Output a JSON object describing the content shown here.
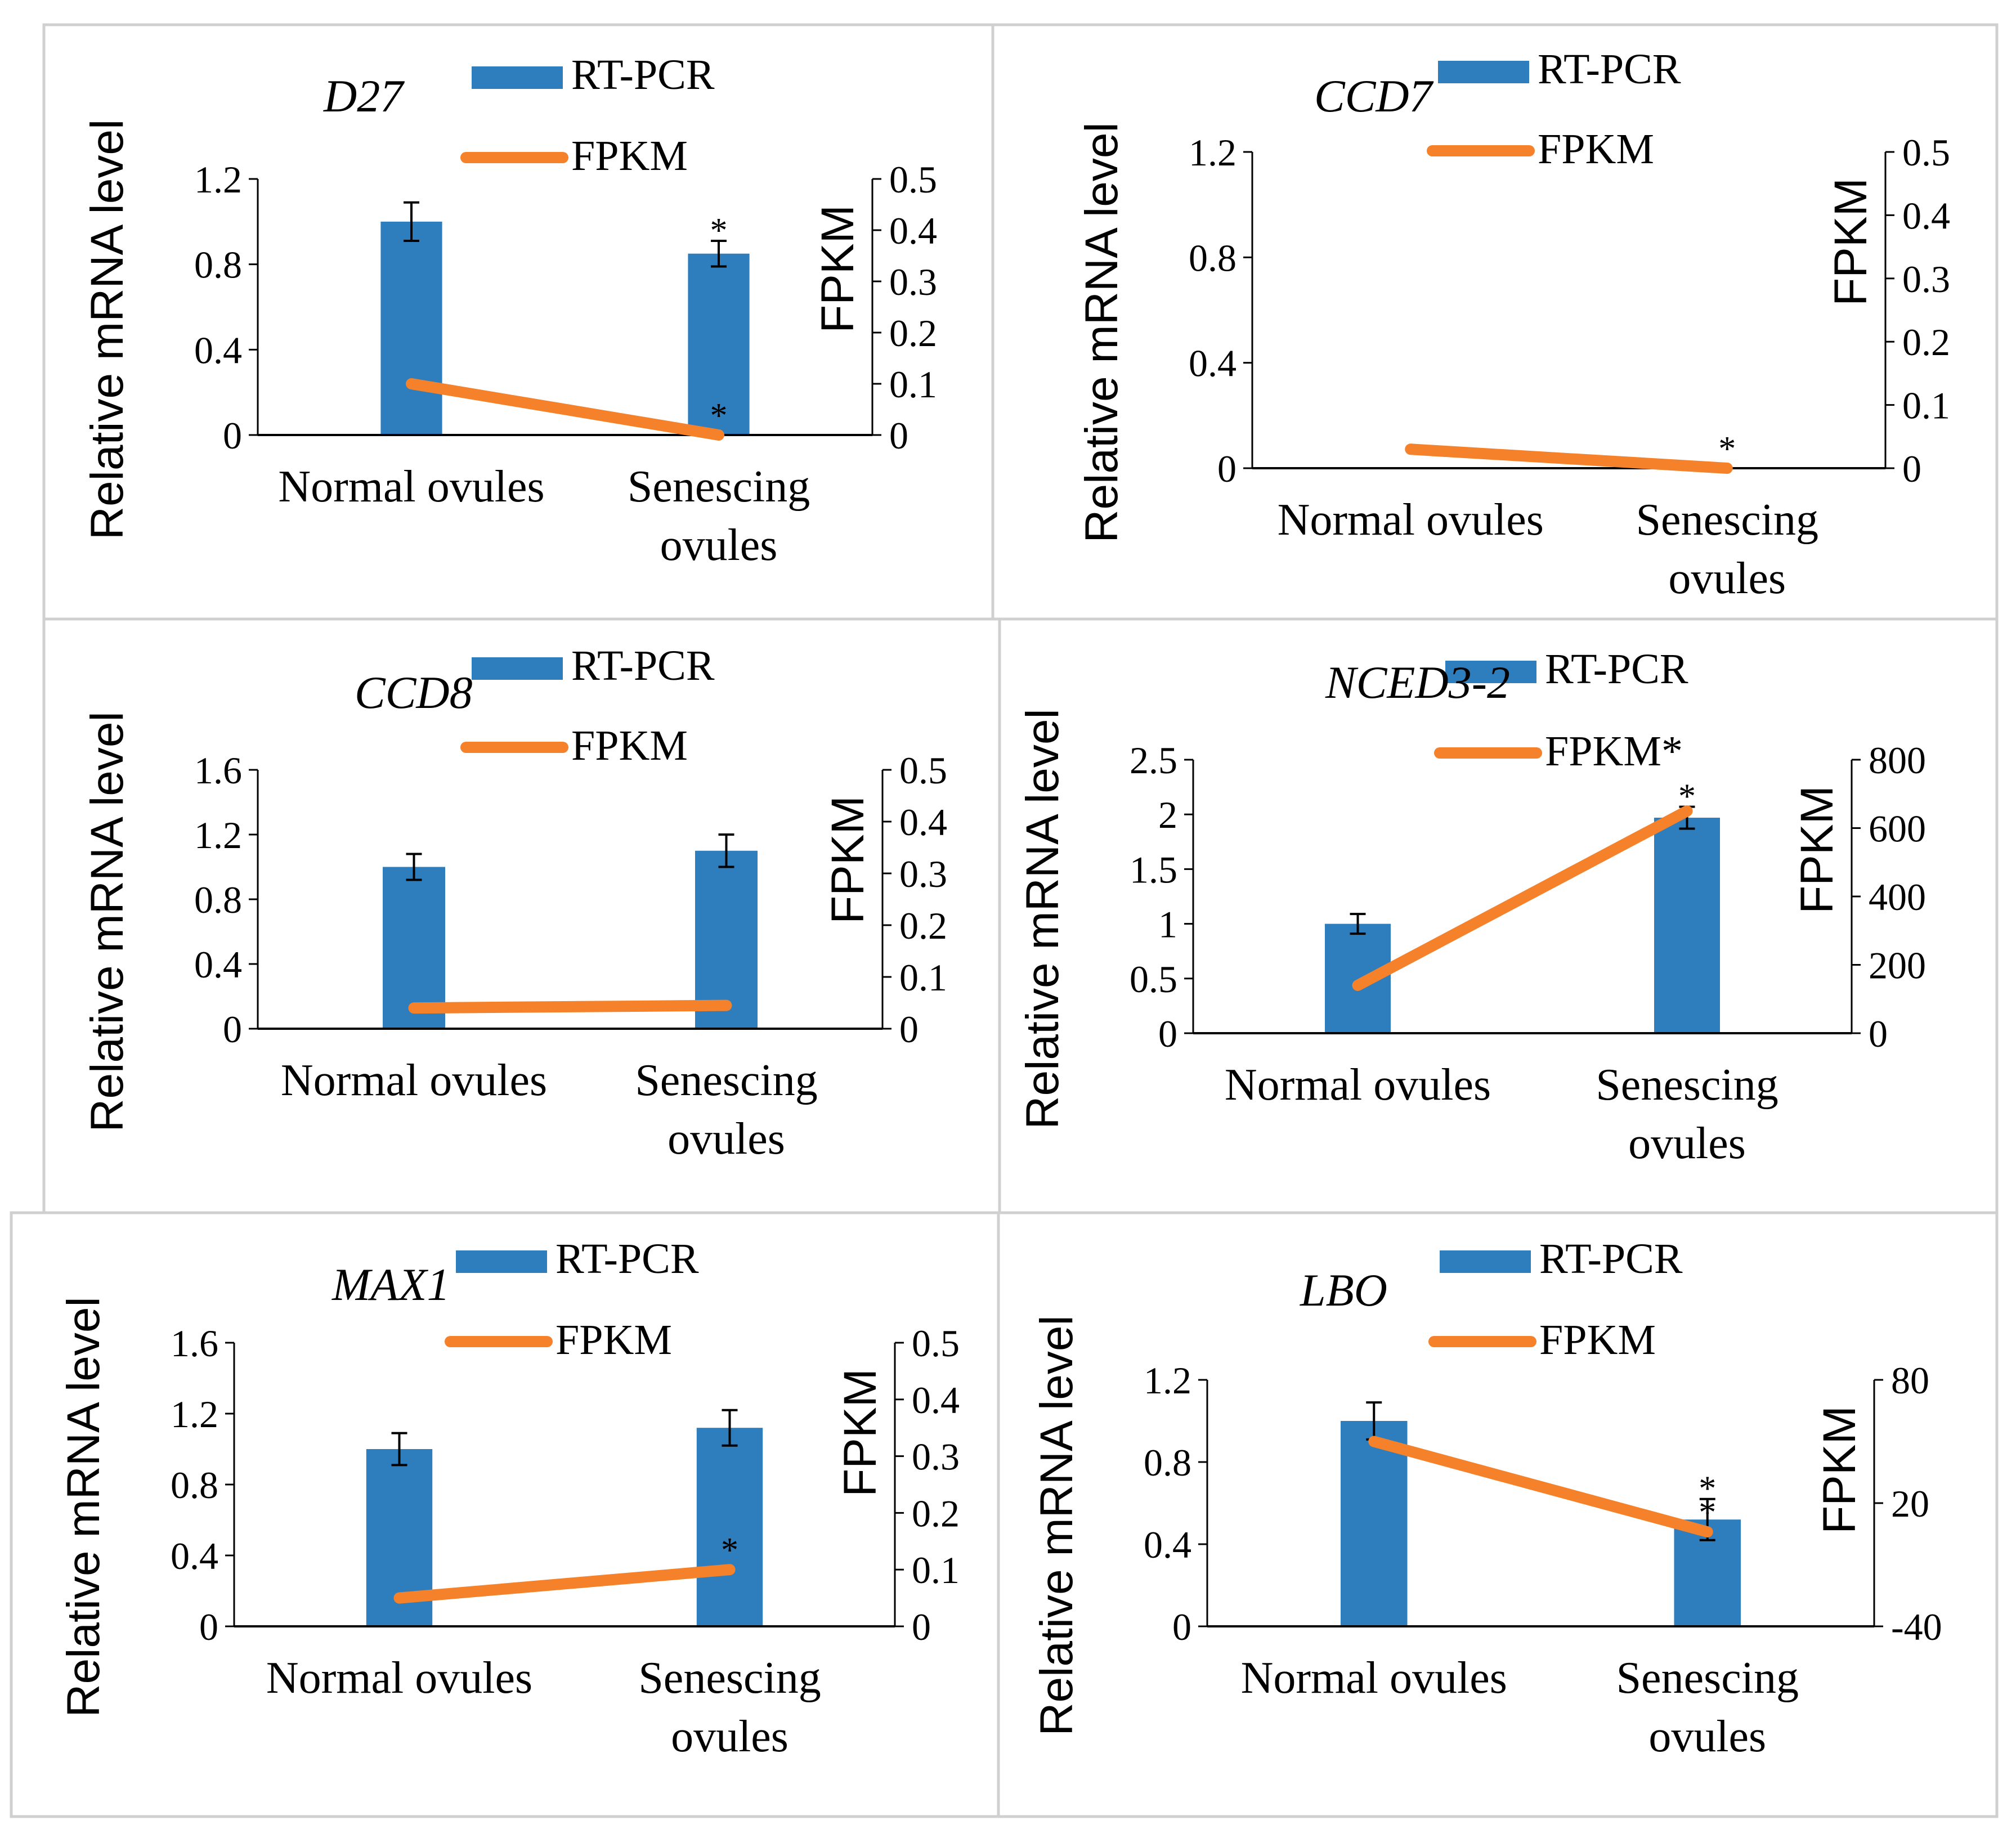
{
  "figure": {
    "description_labels": {
      "x_categories": [
        "Normal ovules",
        "Senescing\novules"
      ]
    }
  },
  "legend": {
    "bar_label": "RT-PCR",
    "line_label": "FPKM"
  },
  "colors": {
    "bar": "#2e7ebd",
    "line": "#f5822a",
    "panel_border": "#d0d0d0",
    "axis": "#000000"
  },
  "chart_data": [
    {
      "type": "bar",
      "title": "D27",
      "categories": [
        "Normal ovules",
        "Senescing\novules"
      ],
      "series": [
        {
          "name": "RT-PCR",
          "type": "bar",
          "axis": "left",
          "values": [
            1.0,
            0.85
          ],
          "errors": [
            0.09,
            0.06
          ]
        },
        {
          "name": "FPKM",
          "type": "line",
          "axis": "right",
          "values": [
            0.1,
            0.0
          ]
        }
      ],
      "ylabel": "Relative mRNA level",
      "y2label": "FPKM",
      "ylim": [
        0,
        1.2
      ],
      "yticks": [
        0,
        0.4,
        0.8,
        1.2
      ],
      "y2lim": [
        0,
        0.5
      ],
      "y2ticks": [
        0,
        0.1,
        0.2,
        0.3,
        0.4,
        0.5
      ],
      "legend_line_label": "FPKM",
      "annotations": [
        {
          "text": "*",
          "target": "bar",
          "index": 1
        },
        {
          "text": "*",
          "target": "line",
          "index": 1
        }
      ]
    },
    {
      "type": "bar",
      "title": "CCD7",
      "categories": [
        "Normal ovules",
        "Senescing\novules"
      ],
      "series": [
        {
          "name": "RT-PCR",
          "type": "bar",
          "axis": "left",
          "values": [
            0.0,
            0.0
          ],
          "errors": [
            0.0,
            0.0
          ]
        },
        {
          "name": "FPKM",
          "type": "line",
          "axis": "right",
          "values": [
            0.03,
            0.0
          ]
        }
      ],
      "ylabel": "Relative mRNA level",
      "y2label": "FPKM",
      "ylim": [
        0,
        1.2
      ],
      "yticks": [
        0,
        0.4,
        0.8,
        1.2
      ],
      "y2lim": [
        0,
        0.5
      ],
      "y2ticks": [
        0,
        0.1,
        0.2,
        0.3,
        0.4,
        0.5
      ],
      "legend_line_label": "FPKM",
      "annotations": [
        {
          "text": "*",
          "target": "line",
          "index": 1
        }
      ]
    },
    {
      "type": "bar",
      "title": "CCD8",
      "categories": [
        "Normal ovules",
        "Senescing\novules"
      ],
      "series": [
        {
          "name": "RT-PCR",
          "type": "bar",
          "axis": "left",
          "values": [
            1.0,
            1.1
          ],
          "errors": [
            0.08,
            0.1
          ]
        },
        {
          "name": "FPKM",
          "type": "line",
          "axis": "right",
          "values": [
            0.04,
            0.045
          ]
        }
      ],
      "ylabel": "Relative mRNA level",
      "y2label": "FPKM",
      "ylim": [
        0,
        1.6
      ],
      "yticks": [
        0,
        0.4,
        0.8,
        1.2,
        1.6
      ],
      "y2lim": [
        0,
        0.5
      ],
      "y2ticks": [
        0,
        0.1,
        0.2,
        0.3,
        0.4,
        0.5
      ],
      "legend_line_label": "FPKM",
      "annotations": []
    },
    {
      "type": "bar",
      "title": "NCED3-2",
      "categories": [
        "Normal ovules",
        "Senescing\novules"
      ],
      "series": [
        {
          "name": "RT-PCR",
          "type": "bar",
          "axis": "left",
          "values": [
            1.0,
            1.97
          ],
          "errors": [
            0.09,
            0.1
          ]
        },
        {
          "name": "FPKM",
          "type": "line",
          "axis": "right",
          "values": [
            140,
            650
          ]
        }
      ],
      "ylabel": "Relative mRNA level",
      "y2label": "FPKM",
      "ylim": [
        0,
        2.5
      ],
      "yticks": [
        0,
        0.5,
        1,
        1.5,
        2,
        2.5
      ],
      "y2lim": [
        0,
        800
      ],
      "y2ticks": [
        0,
        200,
        400,
        600,
        800
      ],
      "legend_line_label": "FPKM*",
      "annotations": [
        {
          "text": "*",
          "target": "bar",
          "index": 1
        }
      ]
    },
    {
      "type": "bar",
      "title": "MAX1",
      "categories": [
        "Normal ovules",
        "Senescing\novules"
      ],
      "series": [
        {
          "name": "RT-PCR",
          "type": "bar",
          "axis": "left",
          "values": [
            1.0,
            1.12
          ],
          "errors": [
            0.09,
            0.1
          ]
        },
        {
          "name": "FPKM",
          "type": "line",
          "axis": "right",
          "values": [
            0.05,
            0.1
          ]
        }
      ],
      "ylabel": "Relative mRNA level",
      "y2label": "FPKM",
      "ylim": [
        0,
        1.6
      ],
      "yticks": [
        0,
        0.4,
        0.8,
        1.2,
        1.6
      ],
      "y2lim": [
        0,
        0.5
      ],
      "y2ticks": [
        0,
        0.1,
        0.2,
        0.3,
        0.4,
        0.5
      ],
      "legend_line_label": "FPKM",
      "annotations": [
        {
          "text": "*",
          "target": "line",
          "index": 1
        }
      ]
    },
    {
      "type": "bar",
      "title": "LBO",
      "categories": [
        "Normal ovules",
        "Senescing\novules"
      ],
      "series": [
        {
          "name": "RT-PCR",
          "type": "bar",
          "axis": "left",
          "values": [
            1.0,
            0.52
          ],
          "errors": [
            0.09,
            0.1
          ]
        },
        {
          "name": "FPKM",
          "type": "line",
          "axis": "right",
          "values": [
            50,
            6
          ]
        }
      ],
      "ylabel": "Relative mRNA level",
      "y2label": "FPKM",
      "ylim": [
        0,
        1.2
      ],
      "yticks": [
        0,
        0.4,
        0.8,
        1.2
      ],
      "y2lim": [
        -40,
        80
      ],
      "y2ticks": [
        -40,
        20,
        80
      ],
      "legend_line_label": "FPKM",
      "annotations": [
        {
          "text": "*",
          "target": "bar",
          "index": 1
        },
        {
          "text": "*",
          "target": "line",
          "index": 1
        }
      ]
    }
  ]
}
